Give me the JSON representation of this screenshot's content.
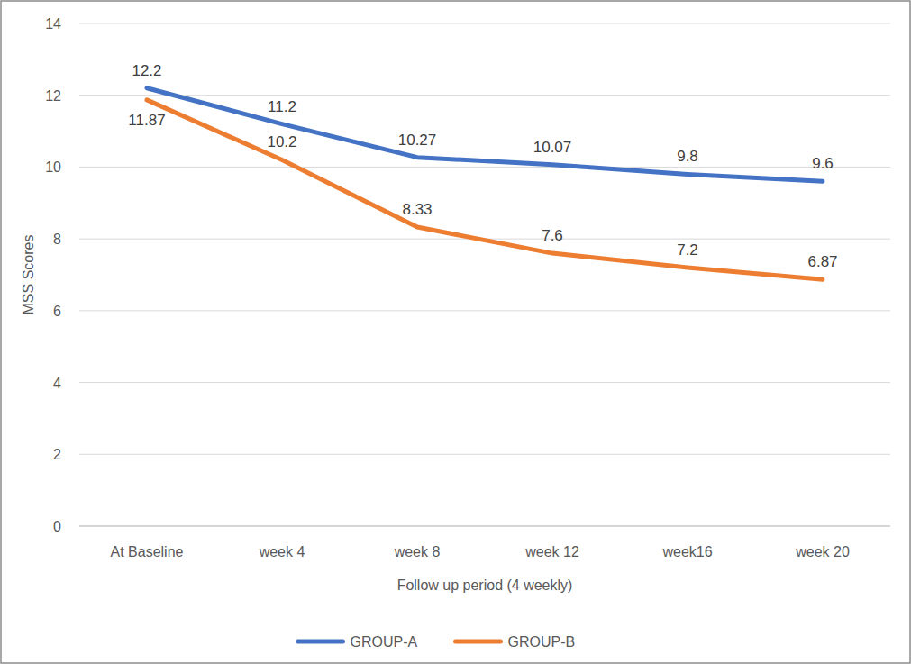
{
  "chart_data": {
    "type": "line",
    "x_label": "Follow up period (4 weekly)",
    "y_label": "MSS Scores",
    "categories": [
      "At Baseline",
      "week 4",
      "week 8",
      "week 12",
      "week16",
      "week 20"
    ],
    "series": [
      {
        "name": "GROUP-A",
        "color": "#4472c4",
        "values": [
          12.2,
          11.2,
          10.27,
          10.07,
          9.8,
          9.6
        ]
      },
      {
        "name": "GROUP-B",
        "color": "#ed7d31",
        "values": [
          11.87,
          10.2,
          8.33,
          7.6,
          7.2,
          6.87
        ]
      }
    ],
    "ylim": [
      0,
      14
    ],
    "yticks": [
      0,
      2,
      4,
      6,
      8,
      10,
      12,
      14
    ],
    "grid": true,
    "legend": "bottom",
    "data_labels": true
  }
}
